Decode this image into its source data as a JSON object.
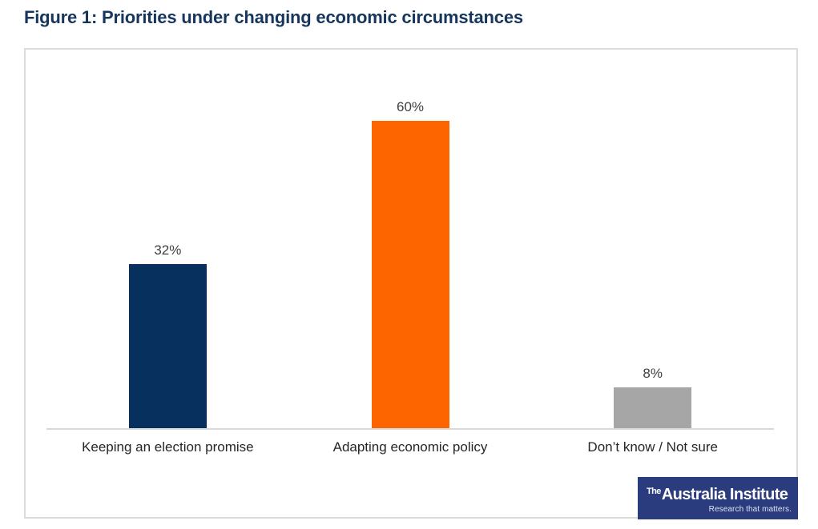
{
  "header": {
    "title": "Figure 1: Priorities under changing economic circumstances"
  },
  "chart_data": {
    "type": "bar",
    "title": "Figure 1: Priorities under changing economic circumstances",
    "categories": [
      "Keeping an election promise",
      "Adapting economic policy",
      "Don’t know / Not sure"
    ],
    "values": [
      32,
      60,
      8
    ],
    "value_labels": [
      "32%",
      "60%",
      "8%"
    ],
    "bar_colors": [
      "#07305F",
      "#FC6500",
      "#A6A6A6"
    ],
    "xlabel": "",
    "ylabel": "",
    "ylim": [
      0,
      74
    ],
    "grid": false,
    "legend": false,
    "data_labels_position": "above-bar"
  },
  "colors": {
    "title_text": "#17365D",
    "frame_border": "#DCDCDC",
    "axis_line": "#D9D9D9",
    "label_text": "#262626",
    "logo_background": "#2B3C7E"
  },
  "logo": {
    "the": "The",
    "name": "Australia Institute",
    "tagline": "Research that matters."
  }
}
